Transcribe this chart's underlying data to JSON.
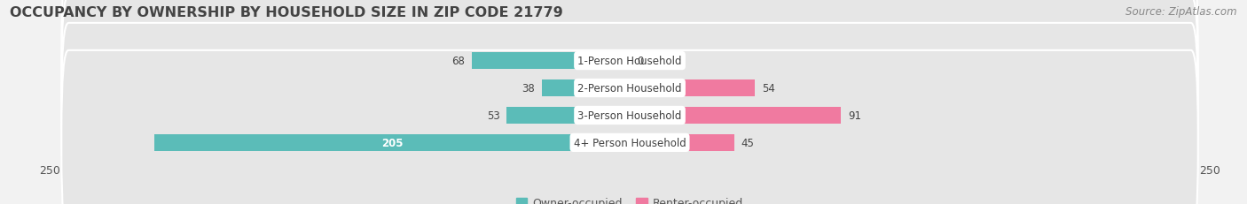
{
  "title": "OCCUPANCY BY OWNERSHIP BY HOUSEHOLD SIZE IN ZIP CODE 21779",
  "source": "Source: ZipAtlas.com",
  "categories": [
    "1-Person Household",
    "2-Person Household",
    "3-Person Household",
    "4+ Person Household"
  ],
  "owner_values": [
    68,
    38,
    53,
    205
  ],
  "renter_values": [
    0,
    54,
    91,
    45
  ],
  "owner_color": "#5bbcb8",
  "renter_color": "#f07aA0",
  "axis_max": 250,
  "background_color": "#f2f2f2",
  "row_bg_color": "#e6e6e6",
  "label_bg": "#ffffff",
  "title_fontsize": 11.5,
  "source_fontsize": 8.5,
  "tick_fontsize": 9,
  "legend_fontsize": 9,
  "bar_label_fontsize": 8.5,
  "category_fontsize": 8.5,
  "bar_height": 0.62
}
